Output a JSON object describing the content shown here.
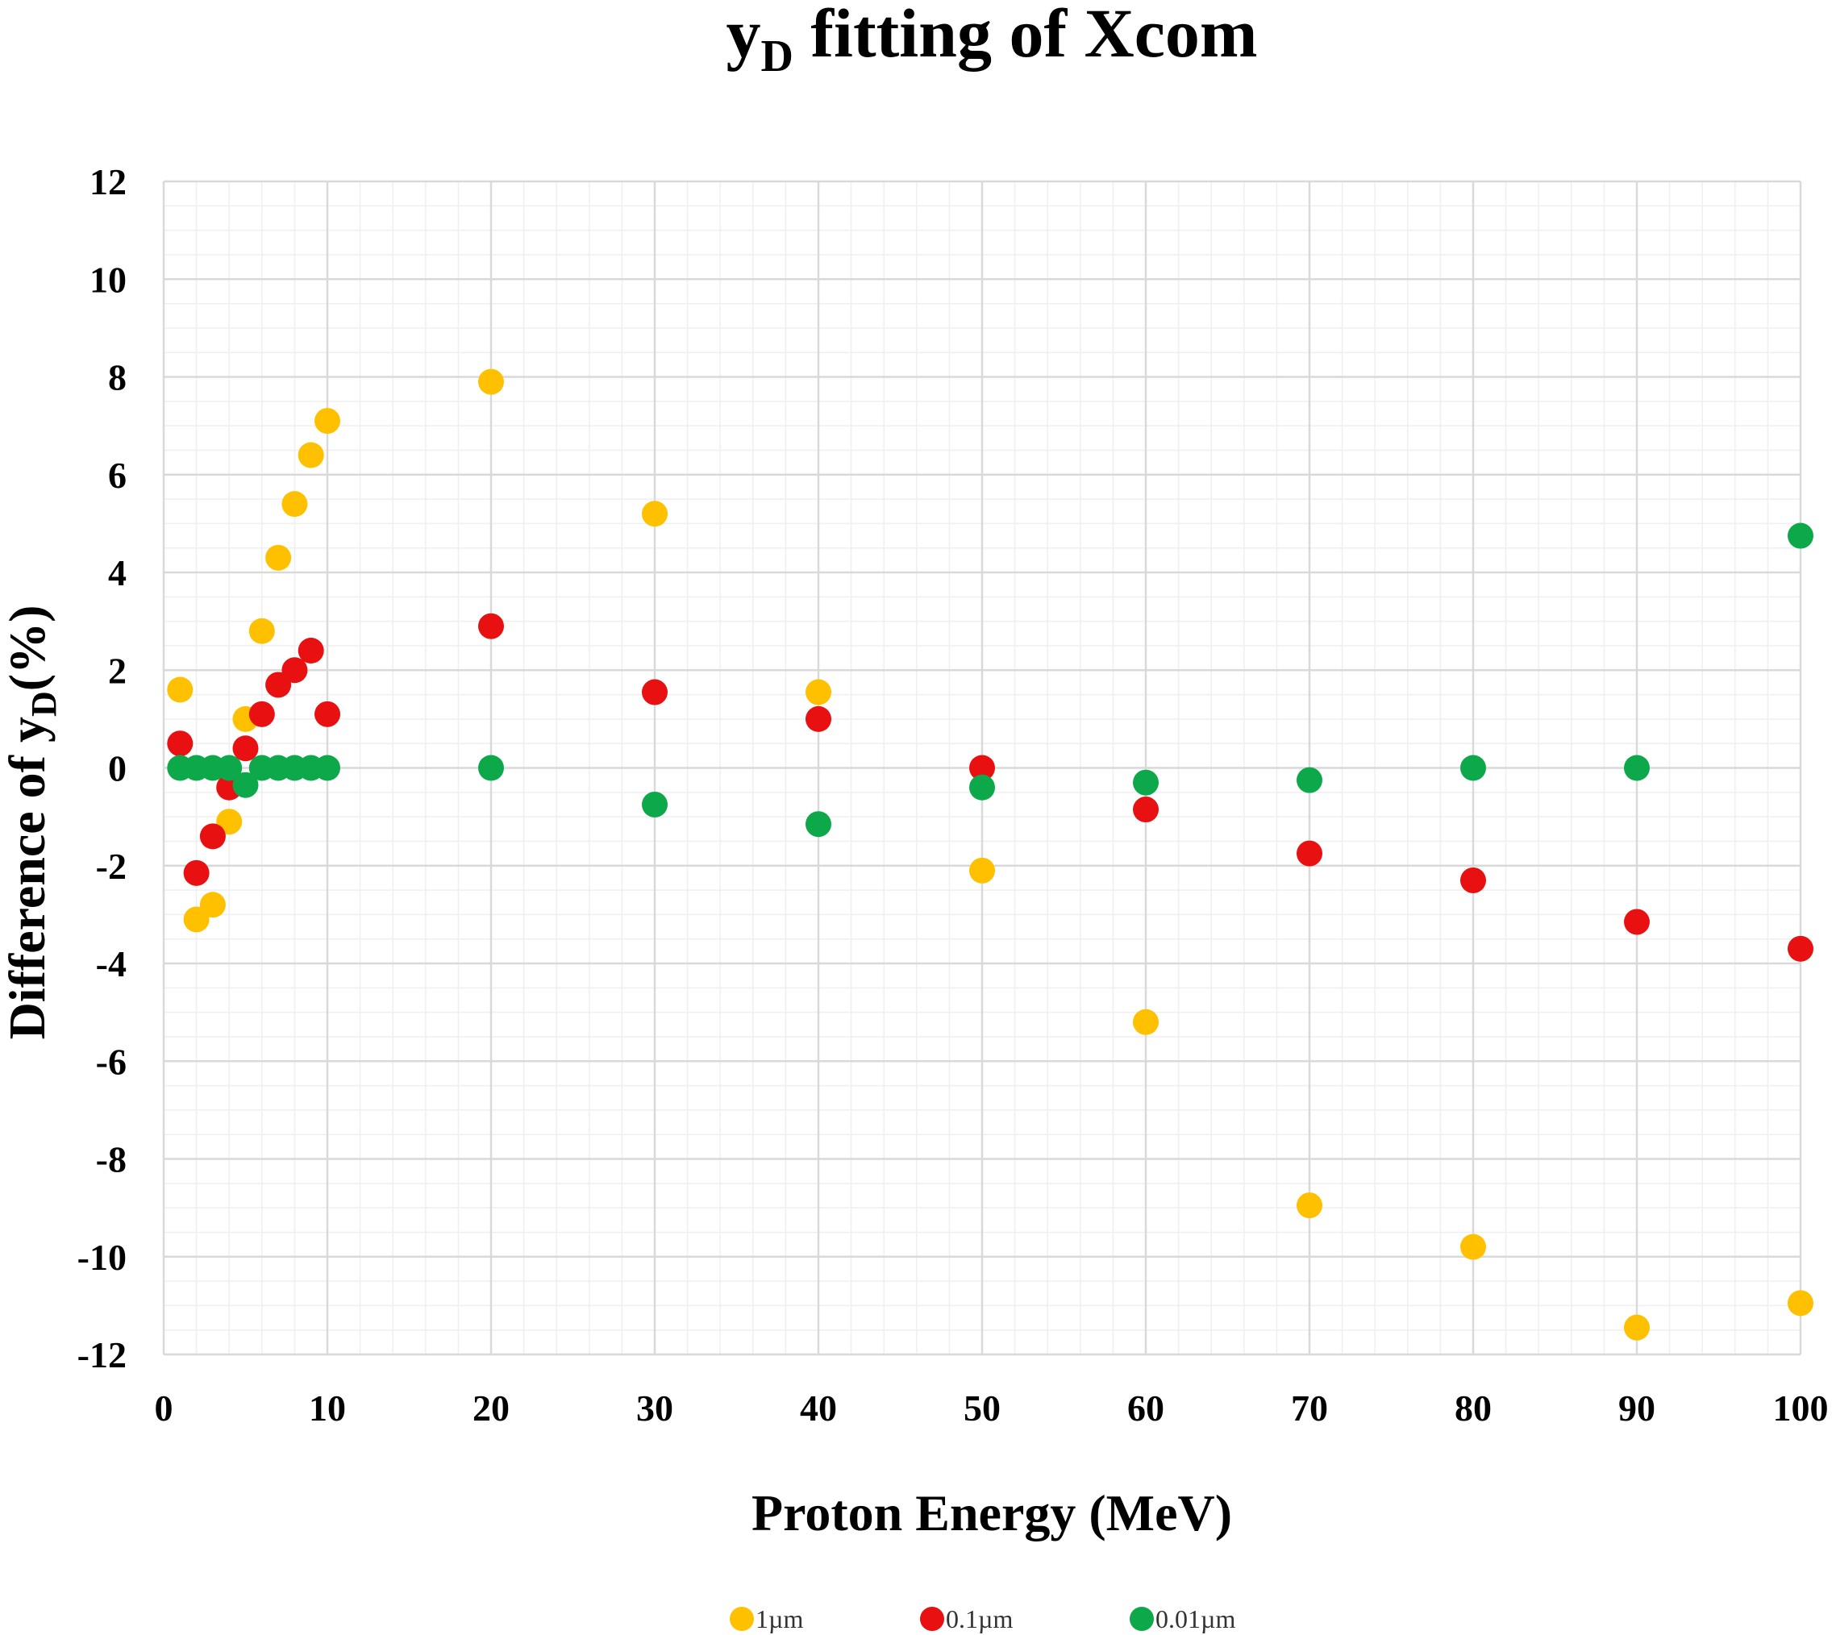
{
  "chart_data": {
    "type": "scatter",
    "title": {
      "main": "y",
      "sub": "D",
      "rest": " fitting of  Xcom"
    },
    "xlabel": "Proton Energy (MeV)",
    "ylabel": {
      "prefix": "Difference of  y",
      "sub": "D",
      "suffix": "(%)"
    },
    "xlim": [
      0,
      100
    ],
    "ylim": [
      -12,
      12
    ],
    "xticks": [
      0,
      10,
      20,
      30,
      40,
      50,
      60,
      70,
      80,
      90,
      100
    ],
    "yticks": [
      -12,
      -10,
      -8,
      -6,
      -4,
      -2,
      0,
      2,
      4,
      6,
      8,
      10,
      12
    ],
    "grid": true,
    "legend_position": "bottom",
    "series": [
      {
        "name": "1µm",
        "color": "#FFC000",
        "x": [
          1,
          2,
          3,
          4,
          5,
          6,
          7,
          8,
          9,
          10,
          20,
          30,
          40,
          50,
          60,
          70,
          80,
          90,
          100
        ],
        "y": [
          1.6,
          -3.1,
          -2.8,
          -1.1,
          1.0,
          2.8,
          4.3,
          5.4,
          6.4,
          7.1,
          7.9,
          5.2,
          1.55,
          -2.1,
          -5.2,
          -8.95,
          -9.8,
          -11.45,
          -10.95
        ]
      },
      {
        "name": "0.1µm",
        "color": "#E81010",
        "x": [
          1,
          2,
          3,
          4,
          5,
          6,
          7,
          8,
          9,
          10,
          20,
          30,
          40,
          50,
          60,
          70,
          80,
          90,
          100
        ],
        "y": [
          0.5,
          -2.15,
          -1.4,
          -0.4,
          0.4,
          1.1,
          1.7,
          2.0,
          2.4,
          1.1,
          2.9,
          1.55,
          1.0,
          0.0,
          -0.85,
          -1.75,
          -2.3,
          -3.15,
          -3.7
        ]
      },
      {
        "name": "0.01µm",
        "color": "#0DA84A",
        "x": [
          1,
          2,
          3,
          4,
          5,
          6,
          7,
          8,
          9,
          10,
          20,
          30,
          40,
          50,
          60,
          70,
          80,
          90,
          100
        ],
        "y": [
          0.0,
          0.0,
          0.0,
          0.0,
          -0.35,
          0.0,
          0.0,
          0.0,
          0.0,
          0.0,
          0.0,
          -0.75,
          -1.15,
          -0.4,
          -0.3,
          -0.25,
          0.0,
          0.0,
          4.75
        ]
      }
    ]
  }
}
